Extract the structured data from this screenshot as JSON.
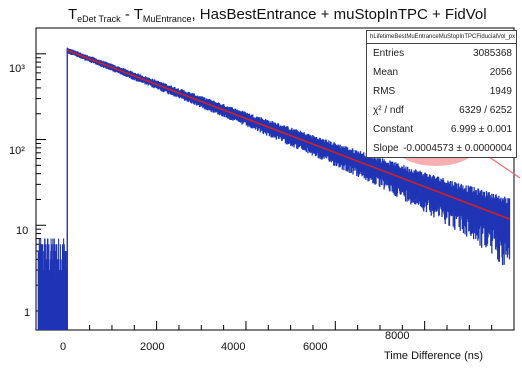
{
  "title": {
    "part1_main": "T",
    "part1_sub": "eDet Track",
    "sep": " - ",
    "part2_main": "T",
    "part2_sub": "MuEntrance",
    "rest": ", HasBestEntrance + muStopInTPC + FidVol"
  },
  "stats": {
    "header": "hLifetimeBestMuEntranceMuStopInTPCFiducialVol_px",
    "rows": [
      {
        "key": "Entries",
        "value": "3085368"
      },
      {
        "key": "Mean",
        "value": "2056"
      },
      {
        "key": "RMS",
        "value": "1949"
      },
      {
        "key": "χ² / ndf",
        "value": "6329 / 6252"
      },
      {
        "key": "Constant",
        "value": "6.999 ± 0.001"
      },
      {
        "key": "Slope",
        "value": "-0.0004573 ± 0.0000004"
      }
    ]
  },
  "highlight_color": "#f06e6e",
  "chart_data": {
    "type": "line",
    "title": "T_eDet Track - T_MuEntrance, HasBestEntrance + muStopInTPC + FidVol",
    "xlabel": "Time Difference (ns)",
    "ylabel": "",
    "log_y": true,
    "xlim": [
      -700,
      10000
    ],
    "ylim": [
      0.6,
      2000
    ],
    "x_ticks": [
      "0",
      "2000",
      "4000",
      "6000",
      "8000"
    ],
    "y_ticks": [
      "1",
      "10",
      "10²",
      "10³"
    ],
    "series": [
      {
        "kind": "histogram",
        "color": "#1f35b5",
        "x": [
          -600,
          -300,
          -5,
          0,
          2000,
          4000,
          6000,
          8000,
          9900
        ],
        "y": [
          5,
          5,
          5,
          1100,
          440,
          177,
          71,
          28.5,
          12
        ]
      },
      {
        "kind": "fit",
        "color": "#d81f1f",
        "x": [
          0,
          9900
        ],
        "y": [
          1096,
          11.8
        ]
      }
    ],
    "fit": {
      "constant": 6.999,
      "slope": -0.0004573
    },
    "grid": false
  }
}
